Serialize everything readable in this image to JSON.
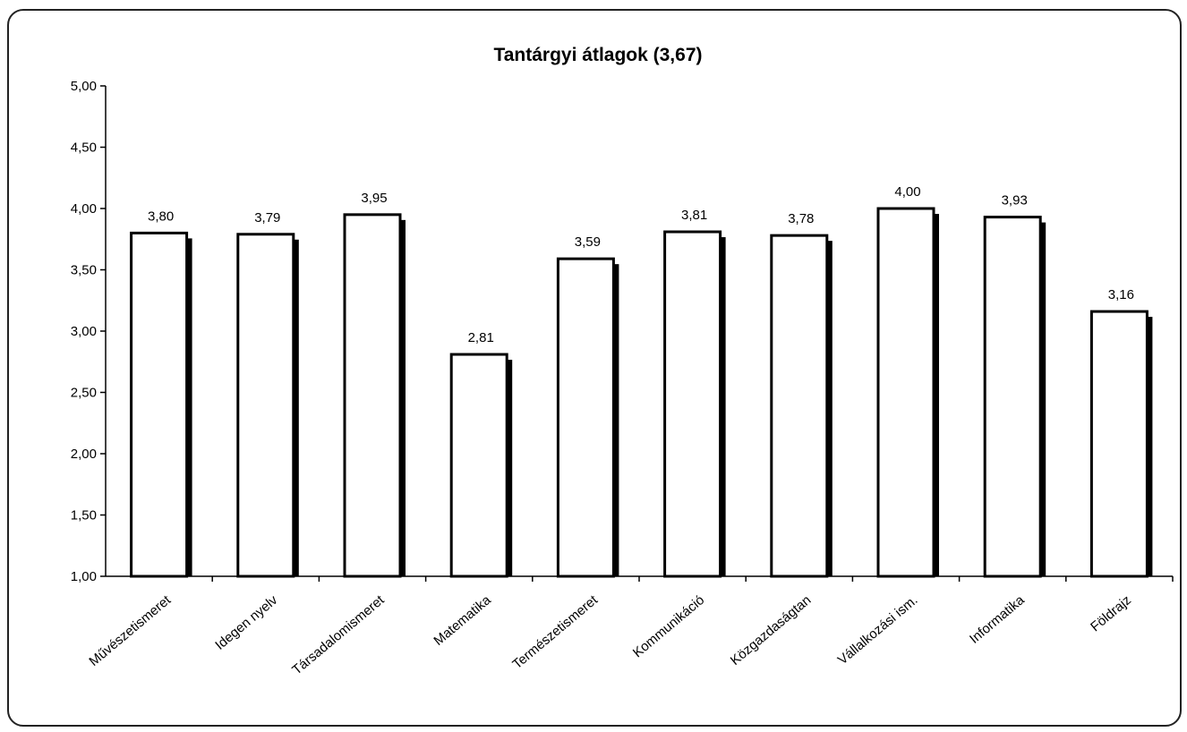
{
  "chart_data": {
    "type": "bar",
    "title": "Tantárgyi átlagok (3,67)",
    "xlabel": "",
    "ylabel": "",
    "ylim": [
      1.0,
      5.0
    ],
    "yticks": [
      1.0,
      1.5,
      2.0,
      2.5,
      3.0,
      3.5,
      4.0,
      4.5,
      5.0
    ],
    "ytick_labels": [
      "1,00",
      "1,50",
      "2,00",
      "2,50",
      "3,00",
      "3,50",
      "4,00",
      "4,50",
      "5,00"
    ],
    "categories": [
      "Művészetismeret",
      "Idegen nyelv",
      "Társadalomismeret",
      "Matematika",
      "Természetismeret",
      "Kommunikáció",
      "Közgazdaságtan",
      "Vállalkozási ism.",
      "Informatika",
      "Földrajz"
    ],
    "values": [
      3.8,
      3.79,
      3.95,
      2.81,
      3.59,
      3.81,
      3.78,
      4.0,
      3.93,
      3.16
    ],
    "value_labels": [
      "3,80",
      "3,79",
      "3,95",
      "2,81",
      "3,59",
      "3,81",
      "3,78",
      "4,00",
      "3,93",
      "3,16"
    ],
    "grid": false,
    "legend": "none",
    "bar_fill": "#ffffff",
    "bar_stroke": "#000000",
    "shadow_color": "#000000"
  }
}
